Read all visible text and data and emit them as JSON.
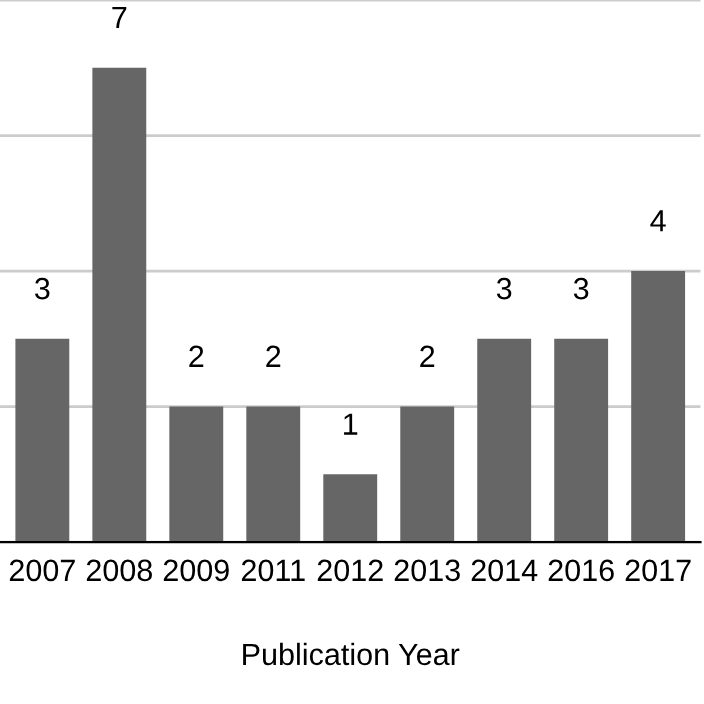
{
  "chart_data": {
    "type": "bar",
    "xlabel": "Publication Year",
    "categories": [
      "2007",
      "2008",
      "2009",
      "2011",
      "2012",
      "2013",
      "2014",
      "2016",
      "2017"
    ],
    "values": [
      3,
      7,
      2,
      2,
      1,
      2,
      3,
      3,
      4
    ],
    "color": "#666666",
    "yticks": [
      {
        "value": 0,
        "label": null
      },
      {
        "value": 2,
        "label": null
      },
      {
        "value": 4,
        "label": null
      },
      {
        "value": 6,
        "label": null
      },
      {
        "value": 8,
        "label": null
      }
    ],
    "grid": "y",
    "data_labels": true,
    "tick_labels": "x"
  }
}
